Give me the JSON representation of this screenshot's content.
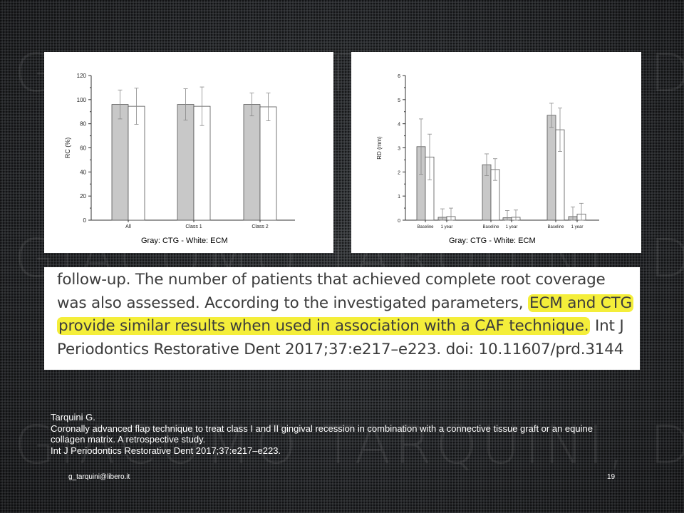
{
  "watermark": "GIACOMO TARQUINI, DDS",
  "chart_data": [
    {
      "type": "bar",
      "ylabel": "RC (%)",
      "xlabel": "",
      "ylim": [
        0,
        120
      ],
      "yticks": [
        "0",
        "20",
        "40",
        "60",
        "80",
        "100",
        "120"
      ],
      "categories": [
        "All",
        "Class 1",
        "Class 2"
      ],
      "series": [
        {
          "values": [
            96,
            96,
            96
          ],
          "errors": [
            12,
            13,
            9.5
          ],
          "color": "#c8c8c8"
        },
        {
          "values": [
            94.5,
            94.5,
            94
          ],
          "errors": [
            15,
            16,
            11.5
          ],
          "color": "#ffffff"
        }
      ],
      "grid": false,
      "caption": "Gray: CTG - White: ECM"
    },
    {
      "type": "bar",
      "ylabel": "RD (mm)",
      "xlabel": "",
      "ylim": [
        0,
        6
      ],
      "yticks": [
        "0",
        "1",
        "2",
        "3",
        "4",
        "5",
        "6"
      ],
      "categories": [
        "Baseline",
        "1 year",
        "Baseline",
        "1 year",
        "Baseline",
        "1 year"
      ],
      "series": [
        {
          "values": [
            3.05,
            0.12,
            2.3,
            0.1,
            4.35,
            0.15
          ],
          "errors": [
            1.15,
            0.35,
            0.45,
            0.3,
            0.5,
            0.4
          ],
          "color": "#c8c8c8"
        },
        {
          "values": [
            2.62,
            0.15,
            2.1,
            0.12,
            3.75,
            0.25
          ],
          "errors": [
            0.95,
            0.35,
            0.45,
            0.3,
            0.9,
            0.45
          ],
          "color": "#ffffff"
        }
      ],
      "grid": false,
      "caption": "Gray: CTG - White: ECM"
    }
  ],
  "excerpt": {
    "line1": "follow-up. The number of patients that achieved complete root coverage",
    "line2a": "was also assessed. According to the investigated parameters, ",
    "line2b": "ECM and CTG",
    "line3a": "provide similar results when used in association with a CAF technique.",
    "line3b": " Int J",
    "line4": "Periodontics Restorative Dent 2017;37:e217–e223. doi: 10.11607/prd.3144",
    "highlight_color": "#f4ee3a"
  },
  "citation": {
    "author": "Tarquini G.",
    "title": "Coronally advanced flap technique to treat class I and II gingival recession in combination with a connective tissue graft or an equine collagen matrix. A retrospective study.",
    "journal": "Int J Periodontics Restorative Dent 2017;37:e217–e223."
  },
  "footer": {
    "email": "g_tarquini@libero.it",
    "page": "19"
  }
}
